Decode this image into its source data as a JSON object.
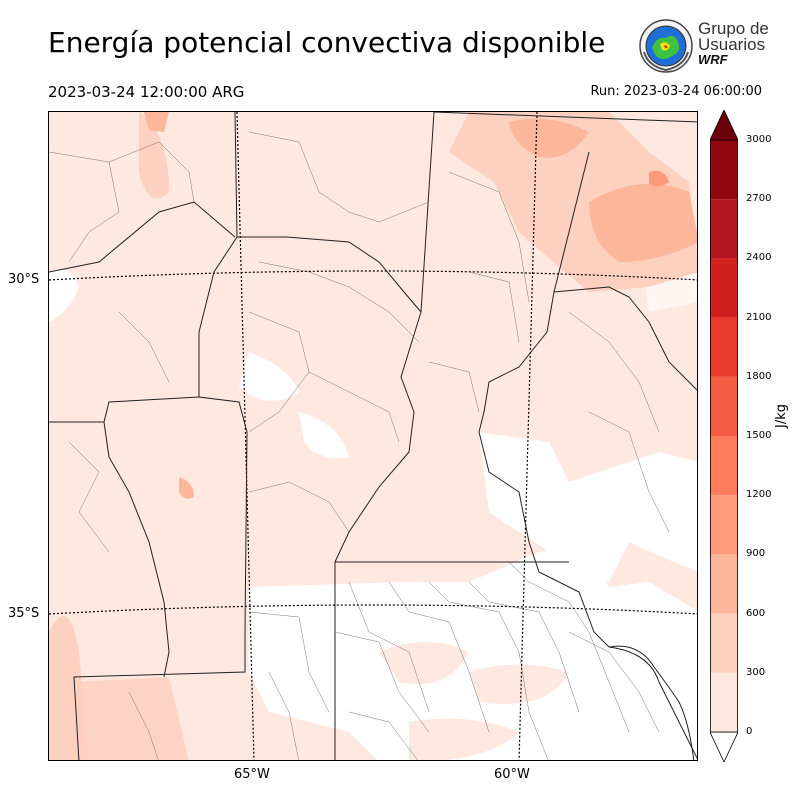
{
  "title": "Energía potencial convectiva disponible",
  "valid_time": "2023-03-24 12:00:00 ARG",
  "run_time": "Run: 2023-03-24 06:00:00",
  "logo": {
    "line1": "Grupo de",
    "line2": "Usuarios",
    "line3": "WRF",
    "icon": "wrf-globe-seal-icon"
  },
  "map": {
    "variable": "CAPE",
    "lat_labels": [
      "30°S",
      "35°S"
    ],
    "lon_labels": [
      "65°W",
      "60°W"
    ],
    "gridlines": "dotted"
  },
  "colorbar": {
    "unit": "J/kg",
    "levels": [
      0,
      300,
      600,
      900,
      1200,
      1500,
      1800,
      2100,
      2400,
      2700,
      3000
    ],
    "tick_labels": [
      "0",
      "300",
      "600",
      "900",
      "1200",
      "1500",
      "1800",
      "2100",
      "2400",
      "2700",
      "3000"
    ],
    "colors": [
      "#fee8df",
      "#fdd0bf",
      "#fcb69a",
      "#fc9a7a",
      "#fb7d5c",
      "#f65c43",
      "#ea3b2e",
      "#d1211f",
      "#b3141b",
      "#90080f"
    ],
    "extend": "both",
    "under_color": "#ffffff",
    "over_color": "#6b000c"
  }
}
